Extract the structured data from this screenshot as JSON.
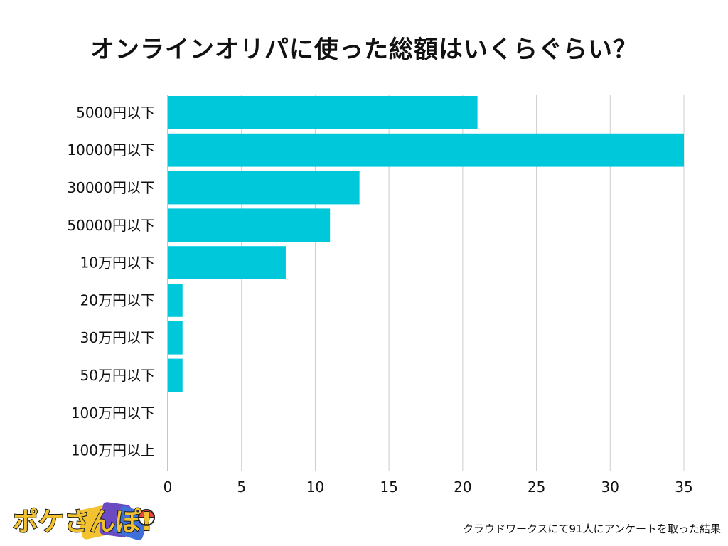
{
  "chart_data": {
    "type": "bar",
    "orientation": "horizontal",
    "title": "オンラインオリパに使った総額はいくらぐらい？",
    "categories": [
      "5000円以下",
      "10000円以下",
      "30000円以下",
      "50000円以下",
      "10万円以下",
      "20万円以下",
      "30万円以下",
      "50万円以下",
      "100万円以下",
      "100万円以上"
    ],
    "values": [
      21,
      35,
      13,
      11,
      8,
      1,
      1,
      1,
      0,
      0
    ],
    "xlim": [
      0,
      35
    ],
    "xticks": [
      0,
      5,
      10,
      15,
      20,
      25,
      30,
      35
    ],
    "xlabel": "",
    "ylabel": "",
    "grid": "vertical",
    "bar_color": "#00C8DB",
    "grid_color": "#CCCCCC"
  },
  "logo": {
    "text": "ポケさんぽ!",
    "colors": [
      "#F2C230",
      "#E8473F",
      "#3F6FD8",
      "#6C4BC2"
    ]
  },
  "footnote": "クラウドワークスにて91人にアンケートを取った結果"
}
